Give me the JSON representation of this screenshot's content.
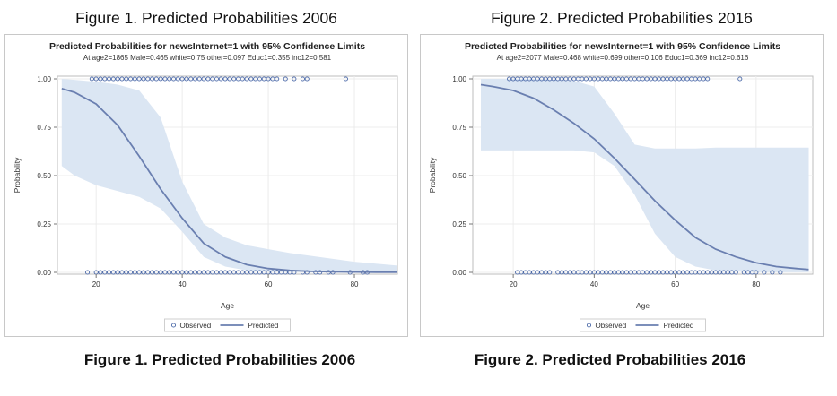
{
  "figures": [
    {
      "heading": "Figure 1. Predicted Probabilities 2006",
      "caption": "Figure 1. Predicted Probabilities 2006"
    },
    {
      "heading": "Figure 2. Predicted Probabilities 2016",
      "caption": "Figure 2. Predicted Probabilities 2016"
    }
  ],
  "chart_data": [
    {
      "type": "line",
      "title": "Predicted Probabilities for newsInternet=1 with 95% Confidence Limits",
      "subtitle": "At age2=1865 Male=0.465 white=0.75 other=0.097 Educ1=0.355 inc12=0.581",
      "xlabel": "Age",
      "ylabel": "Probability",
      "xlim": [
        11,
        90
      ],
      "ylim": [
        0,
        1
      ],
      "x_ticks": [
        20,
        40,
        60,
        80
      ],
      "y_ticks": [
        0,
        0.25,
        0.5,
        0.75,
        1
      ],
      "y_tick_labels": [
        "0.00",
        "0.25",
        "0.50",
        "0.75",
        "1.00"
      ],
      "grid": true,
      "legend": {
        "position": "bottom",
        "observed_label": "Observed",
        "predicted_label": "Predicted"
      },
      "colors": {
        "line": "#6a7fb0",
        "band": "#dbe6f3",
        "marker": "#4a68a8"
      },
      "predicted": {
        "x": [
          12,
          15,
          20,
          25,
          30,
          35,
          40,
          45,
          50,
          55,
          60,
          65,
          70,
          75,
          80,
          85,
          90
        ],
        "y": [
          0.95,
          0.93,
          0.87,
          0.76,
          0.6,
          0.43,
          0.28,
          0.15,
          0.08,
          0.04,
          0.02,
          0.01,
          0.005,
          0.003,
          0.002,
          0.001,
          0.001
        ]
      },
      "confidence_band": {
        "x": [
          12,
          15,
          20,
          25,
          30,
          35,
          40,
          45,
          50,
          55,
          60,
          65,
          70,
          75,
          80,
          85,
          90
        ],
        "lower": [
          0.55,
          0.5,
          0.45,
          0.42,
          0.39,
          0.33,
          0.21,
          0.08,
          0.03,
          0.01,
          0.004,
          0.002,
          0.001,
          0.0005,
          0.0002,
          0.0001,
          0.0
        ],
        "upper": [
          1.0,
          0.995,
          0.985,
          0.97,
          0.94,
          0.8,
          0.47,
          0.25,
          0.18,
          0.14,
          0.12,
          0.1,
          0.085,
          0.07,
          0.055,
          0.045,
          0.035
        ]
      },
      "observed": {
        "y1_x": [
          19,
          20,
          21,
          22,
          23,
          24,
          25,
          26,
          27,
          28,
          29,
          30,
          31,
          32,
          33,
          34,
          35,
          36,
          37,
          38,
          39,
          40,
          41,
          42,
          43,
          44,
          45,
          46,
          47,
          48,
          49,
          50,
          51,
          52,
          53,
          54,
          55,
          56,
          57,
          58,
          59,
          60,
          61,
          62,
          64,
          66,
          68,
          69,
          78
        ],
        "y0_x": [
          18,
          20,
          21,
          22,
          23,
          24,
          25,
          26,
          27,
          28,
          29,
          30,
          31,
          32,
          33,
          34,
          35,
          36,
          37,
          38,
          39,
          40,
          41,
          42,
          43,
          44,
          45,
          46,
          47,
          48,
          49,
          50,
          51,
          52,
          53,
          54,
          55,
          56,
          57,
          58,
          59,
          60,
          61,
          62,
          63,
          64,
          65,
          66,
          68,
          69,
          71,
          72,
          74,
          75,
          79,
          82,
          83
        ]
      }
    },
    {
      "type": "line",
      "title": "Predicted Probabilities for newsInternet=1 with 95% Confidence Limits",
      "subtitle": "At age2=2077 Male=0.468 white=0.699 other=0.106 Educ1=0.369 inc12=0.616",
      "xlabel": "Age",
      "ylabel": "Probability",
      "xlim": [
        10,
        94
      ],
      "ylim": [
        0,
        1
      ],
      "x_ticks": [
        20,
        40,
        60,
        80
      ],
      "y_ticks": [
        0,
        0.25,
        0.5,
        0.75,
        1
      ],
      "y_tick_labels": [
        "0.00",
        "0.25",
        "0.50",
        "0.75",
        "1.00"
      ],
      "grid": true,
      "legend": {
        "position": "bottom",
        "observed_label": "Observed",
        "predicted_label": "Predicted"
      },
      "colors": {
        "line": "#6a7fb0",
        "band": "#dbe6f3",
        "marker": "#4a68a8"
      },
      "predicted": {
        "x": [
          12,
          15,
          20,
          25,
          30,
          35,
          40,
          45,
          50,
          55,
          60,
          65,
          70,
          75,
          80,
          85,
          90,
          93
        ],
        "y": [
          0.97,
          0.96,
          0.94,
          0.9,
          0.84,
          0.77,
          0.69,
          0.59,
          0.48,
          0.37,
          0.27,
          0.18,
          0.12,
          0.08,
          0.05,
          0.03,
          0.02,
          0.015
        ]
      },
      "confidence_band": {
        "x": [
          12,
          15,
          20,
          25,
          30,
          35,
          40,
          45,
          50,
          55,
          60,
          65,
          70,
          75,
          80,
          85,
          90,
          93
        ],
        "lower": [
          0.63,
          0.63,
          0.63,
          0.63,
          0.63,
          0.63,
          0.62,
          0.55,
          0.4,
          0.2,
          0.08,
          0.03,
          0.01,
          0.005,
          0.002,
          0.001,
          0.0005,
          0.0003
        ],
        "upper": [
          1.0,
          1.0,
          1.0,
          1.0,
          0.995,
          0.99,
          0.96,
          0.82,
          0.66,
          0.64,
          0.64,
          0.64,
          0.645,
          0.645,
          0.645,
          0.645,
          0.645,
          0.645
        ]
      },
      "observed": {
        "y1_x": [
          19,
          20,
          21,
          22,
          23,
          24,
          25,
          26,
          27,
          28,
          29,
          30,
          31,
          32,
          33,
          34,
          35,
          36,
          37,
          38,
          39,
          40,
          41,
          42,
          43,
          44,
          45,
          46,
          47,
          48,
          49,
          50,
          51,
          52,
          53,
          54,
          55,
          56,
          57,
          58,
          59,
          60,
          61,
          62,
          63,
          64,
          65,
          66,
          67,
          68,
          76
        ],
        "y0_x": [
          21,
          22,
          23,
          24,
          25,
          26,
          27,
          28,
          29,
          31,
          32,
          33,
          34,
          35,
          36,
          37,
          38,
          39,
          40,
          41,
          42,
          43,
          44,
          45,
          46,
          47,
          48,
          49,
          50,
          51,
          52,
          53,
          54,
          55,
          56,
          57,
          58,
          59,
          60,
          61,
          62,
          63,
          64,
          65,
          66,
          67,
          68,
          69,
          70,
          71,
          72,
          73,
          74,
          75,
          77,
          78,
          79,
          80,
          82,
          84,
          86
        ]
      }
    }
  ]
}
